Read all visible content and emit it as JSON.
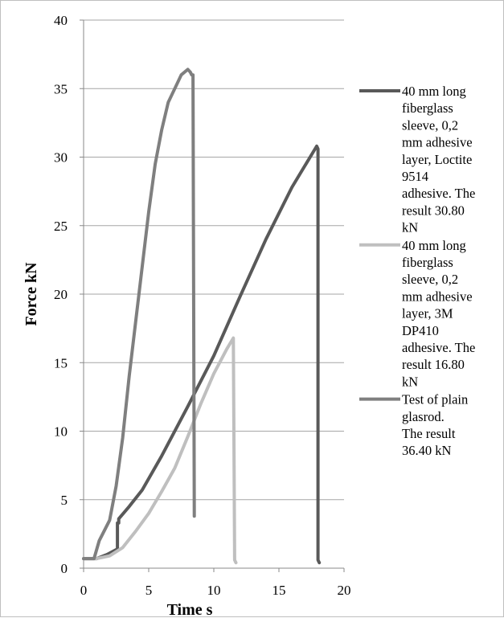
{
  "chart_data": {
    "type": "line",
    "xlabel": "Time  s",
    "ylabel": "Force  kN",
    "xlim": [
      0,
      20
    ],
    "ylim": [
      0,
      40
    ],
    "x_ticks": [
      "0",
      "5",
      "10",
      "15",
      "20"
    ],
    "y_ticks": [
      "0",
      "5",
      "10",
      "15",
      "20",
      "25",
      "30",
      "35",
      "40"
    ],
    "grid": "horizontal",
    "legend_position": "right",
    "series": [
      {
        "name": "40 mm long fiberglass sleeve, 0,2 mm adhesive layer, Loctite 9514 adhesive. The result 30.80 kN",
        "legend_lines": [
          "40 mm long",
          "fiberglass",
          "sleeve, 0,2",
          "mm adhesive",
          "layer, Loctite",
          "9514",
          "adhesive. The",
          "result 30.80",
          "kN"
        ],
        "color": "#595959",
        "x": [
          0,
          1.0,
          1.8,
          2.6,
          2.6,
          2.7,
          2.7,
          3.5,
          4.5,
          6.0,
          8.0,
          10.0,
          12.0,
          14.0,
          16.0,
          17.9,
          18.0,
          18.0,
          18.1
        ],
        "y": [
          0.7,
          0.7,
          1.0,
          1.4,
          3.3,
          3.3,
          3.6,
          4.5,
          5.7,
          8.2,
          11.8,
          15.5,
          19.8,
          24.0,
          27.8,
          30.8,
          30.6,
          0.6,
          0.4
        ]
      },
      {
        "name": "40 mm long fiberglass sleeve, 0,2 mm adhesive layer, 3M DP410 adhesive. The result 16.80 kN",
        "legend_lines": [
          "40 mm long",
          "fiberglass",
          "sleeve, 0,2",
          "mm adhesive",
          "layer, 3M",
          "DP410",
          "adhesive. The",
          "result 16.80",
          "kN"
        ],
        "color": "#bfbfbf",
        "x": [
          0,
          1.0,
          2.0,
          3.0,
          4.0,
          5.0,
          6.0,
          7.0,
          8.0,
          9.0,
          10.0,
          11.0,
          11.5,
          11.6,
          11.7
        ],
        "y": [
          0.7,
          0.7,
          0.9,
          1.5,
          2.7,
          4.0,
          5.6,
          7.3,
          9.6,
          12.0,
          14.2,
          16.0,
          16.8,
          0.6,
          0.4
        ]
      },
      {
        "name": "Test of plain glasrod. The result 36.40 kN",
        "legend_lines": [
          "Test of plain",
          "glasrod.",
          "The result",
          "36.40 kN"
        ],
        "color": "#7f7f7f",
        "x": [
          0,
          0.8,
          1.2,
          2.0,
          2.5,
          3.0,
          3.5,
          4.0,
          4.5,
          5.0,
          5.5,
          6.0,
          6.5,
          7.0,
          7.5,
          8.0,
          8.2,
          8.3,
          8.4,
          8.5,
          8.5
        ],
        "y": [
          0.7,
          0.7,
          2.0,
          3.5,
          6.0,
          9.5,
          14.0,
          18.0,
          22.0,
          26.0,
          29.5,
          32.0,
          34.0,
          35.0,
          36.0,
          36.4,
          36.2,
          36.0,
          36.0,
          4.0,
          3.8
        ]
      }
    ]
  }
}
